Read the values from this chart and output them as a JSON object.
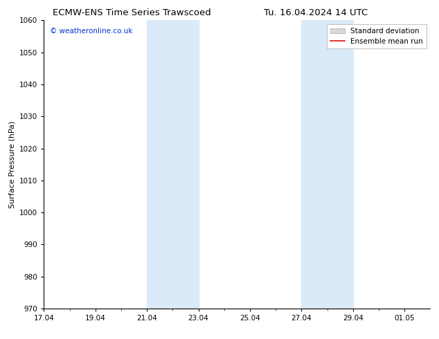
{
  "title_left": "ECMW-ENS Time Series Trawscoed",
  "title_right": "Tu. 16.04.2024 14 UTC",
  "ylabel": "Surface Pressure (hPa)",
  "ylim": [
    970,
    1060
  ],
  "yticks": [
    970,
    980,
    990,
    1000,
    1010,
    1020,
    1030,
    1040,
    1050,
    1060
  ],
  "xtick_labels": [
    "17.04",
    "19.04",
    "21.04",
    "23.04",
    "25.04",
    "27.04",
    "29.04",
    "01.05"
  ],
  "xtick_positions": [
    0,
    2,
    4,
    6,
    8,
    10,
    12,
    14
  ],
  "xlim": [
    0,
    15
  ],
  "shade_regions": [
    {
      "start": 4,
      "end": 6
    },
    {
      "start": 10,
      "end": 12
    }
  ],
  "shade_color": "#daeaf8",
  "watermark_text": "© weatheronline.co.uk",
  "watermark_color": "#0033cc",
  "legend_std_label": "Standard deviation",
  "legend_ens_label": "Ensemble mean run",
  "legend_std_facecolor": "#d8d8d8",
  "legend_std_edgecolor": "#aaaaaa",
  "legend_ens_color": "#dd1111",
  "bg_color": "#ffffff",
  "axis_color": "#000000",
  "title_fontsize": 9.5,
  "tick_fontsize": 7.5,
  "ylabel_fontsize": 8,
  "watermark_fontsize": 7.5,
  "legend_fontsize": 7.5
}
